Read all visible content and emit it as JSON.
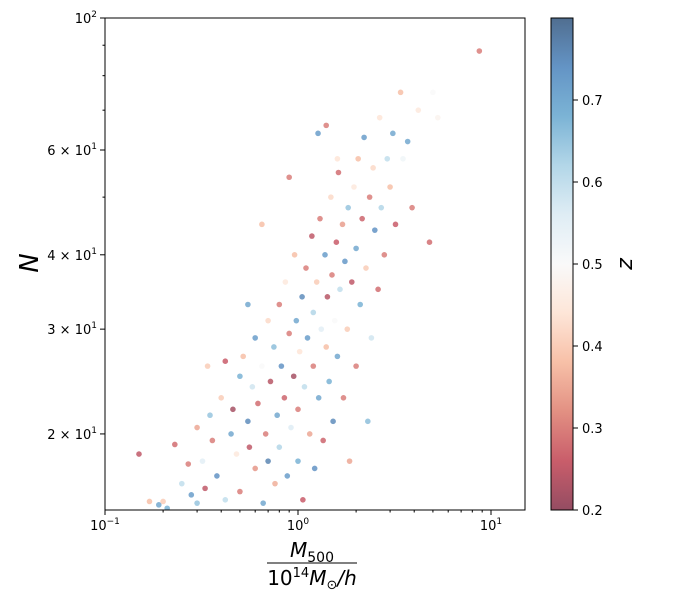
{
  "chart_data": {
    "type": "scatter",
    "title": "",
    "xlabel_numerator": "M",
    "xlabel_numerator_sub": "500",
    "xlabel_denominator": "10",
    "xlabel_denominator_sup": "14",
    "xlabel_denominator_rest": "M",
    "xlabel_denominator_sub": "⊙",
    "xlabel_denominator_tail": "/h",
    "ylabel": "N",
    "xscale": "log",
    "yscale": "log",
    "xlim": [
      0.1,
      15
    ],
    "ylim": [
      14.9,
      100
    ],
    "grid": false,
    "xticks": [
      {
        "value": 0.1,
        "base": "10",
        "exp": "−1"
      },
      {
        "value": 1,
        "base": "10",
        "exp": "0"
      },
      {
        "value": 10,
        "base": "10",
        "exp": "1"
      }
    ],
    "yticks": [
      {
        "value": 100,
        "label": "10",
        "exp": "2"
      },
      {
        "value": 60,
        "label": "6 × 10",
        "exp": "1"
      },
      {
        "value": 40,
        "label": "4 × 10",
        "exp": "1"
      },
      {
        "value": 30,
        "label": "3 × 10",
        "exp": "1"
      },
      {
        "value": 20,
        "label": "2 × 10",
        "exp": "1"
      }
    ],
    "yminor": [
      50,
      70,
      80,
      90
    ],
    "colorbar": {
      "label": "z",
      "colormap": "RdBu",
      "vmin": 0.2,
      "vmax": 0.8,
      "ticks": [
        "0.2",
        "0.3",
        "0.4",
        "0.5",
        "0.6",
        "0.7"
      ]
    },
    "marker_alpha": 0.6,
    "points_xyz": [
      [
        0.15,
        18.5,
        0.25
      ],
      [
        0.17,
        15.4,
        0.38
      ],
      [
        0.19,
        15.2,
        0.7
      ],
      [
        0.2,
        15.4,
        0.4
      ],
      [
        0.21,
        15,
        0.68
      ],
      [
        0.23,
        19.2,
        0.28
      ],
      [
        0.25,
        16.5,
        0.6
      ],
      [
        0.27,
        17.8,
        0.3
      ],
      [
        0.28,
        15.8,
        0.72
      ],
      [
        0.3,
        20.5,
        0.35
      ],
      [
        0.32,
        18,
        0.55
      ],
      [
        0.33,
        16.2,
        0.25
      ],
      [
        0.35,
        21.5,
        0.65
      ],
      [
        0.36,
        19.5,
        0.3
      ],
      [
        0.38,
        17,
        0.74
      ],
      [
        0.4,
        23,
        0.4
      ],
      [
        0.42,
        26.5,
        0.26
      ],
      [
        0.42,
        15.5,
        0.6
      ],
      [
        0.45,
        20,
        0.7
      ],
      [
        0.46,
        22,
        0.22
      ],
      [
        0.48,
        18.5,
        0.45
      ],
      [
        0.5,
        25,
        0.68
      ],
      [
        0.5,
        16,
        0.3
      ],
      [
        0.52,
        27,
        0.38
      ],
      [
        0.55,
        21,
        0.75
      ],
      [
        0.56,
        19,
        0.25
      ],
      [
        0.58,
        24,
        0.58
      ],
      [
        0.6,
        17.5,
        0.33
      ],
      [
        0.6,
        29,
        0.72
      ],
      [
        0.62,
        22.5,
        0.28
      ],
      [
        0.65,
        26,
        0.5
      ],
      [
        0.66,
        15.3,
        0.7
      ],
      [
        0.68,
        20,
        0.3
      ],
      [
        0.7,
        31,
        0.42
      ],
      [
        0.7,
        18,
        0.76
      ],
      [
        0.72,
        24.5,
        0.24
      ],
      [
        0.75,
        28,
        0.66
      ],
      [
        0.76,
        16.5,
        0.36
      ],
      [
        0.78,
        21.5,
        0.7
      ],
      [
        0.8,
        33,
        0.3
      ],
      [
        0.8,
        19,
        0.62
      ],
      [
        0.82,
        26,
        0.74
      ],
      [
        0.85,
        23,
        0.27
      ],
      [
        0.86,
        36,
        0.45
      ],
      [
        0.88,
        17,
        0.72
      ],
      [
        0.9,
        29.5,
        0.3
      ],
      [
        0.92,
        20.5,
        0.56
      ],
      [
        0.95,
        25,
        0.22
      ],
      [
        0.96,
        40,
        0.38
      ],
      [
        0.98,
        31,
        0.7
      ],
      [
        1.0,
        22,
        0.3
      ],
      [
        1.0,
        18,
        0.68
      ],
      [
        1.02,
        27.5,
        0.44
      ],
      [
        1.05,
        34,
        0.75
      ],
      [
        1.06,
        15.5,
        0.26
      ],
      [
        1.08,
        24,
        0.6
      ],
      [
        1.1,
        38,
        0.3
      ],
      [
        1.12,
        29,
        0.72
      ],
      [
        1.15,
        20,
        0.35
      ],
      [
        1.18,
        43,
        0.25
      ],
      [
        1.2,
        32,
        0.62
      ],
      [
        1.2,
        26,
        0.3
      ],
      [
        1.22,
        17.5,
        0.74
      ],
      [
        1.25,
        36,
        0.4
      ],
      [
        1.28,
        23,
        0.7
      ],
      [
        1.3,
        46,
        0.3
      ],
      [
        1.32,
        30,
        0.55
      ],
      [
        1.35,
        19.5,
        0.27
      ],
      [
        1.38,
        40,
        0.72
      ],
      [
        1.4,
        28,
        0.38
      ],
      [
        1.42,
        34,
        0.24
      ],
      [
        1.45,
        24.5,
        0.68
      ],
      [
        1.48,
        50,
        0.42
      ],
      [
        1.5,
        37,
        0.3
      ],
      [
        1.52,
        21,
        0.75
      ],
      [
        1.55,
        31,
        0.5
      ],
      [
        1.58,
        42,
        0.26
      ],
      [
        1.6,
        27,
        0.7
      ],
      [
        1.62,
        55,
        0.28
      ],
      [
        1.65,
        35,
        0.6
      ],
      [
        1.7,
        45,
        0.34
      ],
      [
        1.72,
        23,
        0.3
      ],
      [
        1.75,
        39,
        0.73
      ],
      [
        1.8,
        30,
        0.4
      ],
      [
        1.82,
        48,
        0.65
      ],
      [
        1.85,
        18,
        0.35
      ],
      [
        1.9,
        36,
        0.25
      ],
      [
        1.95,
        52,
        0.45
      ],
      [
        2.0,
        41,
        0.7
      ],
      [
        2.0,
        26,
        0.3
      ],
      [
        2.05,
        58,
        0.38
      ],
      [
        2.1,
        33,
        0.68
      ],
      [
        2.15,
        46,
        0.27
      ],
      [
        2.2,
        63,
        0.72
      ],
      [
        2.25,
        38,
        0.4
      ],
      [
        2.3,
        21,
        0.66
      ],
      [
        2.35,
        50,
        0.3
      ],
      [
        2.4,
        29,
        0.58
      ],
      [
        2.45,
        56,
        0.42
      ],
      [
        2.5,
        44,
        0.74
      ],
      [
        2.6,
        35,
        0.28
      ],
      [
        2.65,
        68,
        0.44
      ],
      [
        2.7,
        48,
        0.62
      ],
      [
        2.8,
        40,
        0.3
      ],
      [
        2.9,
        58,
        0.6
      ],
      [
        3.0,
        52,
        0.38
      ],
      [
        3.1,
        64,
        0.7
      ],
      [
        3.2,
        45,
        0.26
      ],
      [
        3.4,
        75,
        0.38
      ],
      [
        3.5,
        58,
        0.52
      ],
      [
        3.7,
        62,
        0.7
      ],
      [
        3.9,
        48,
        0.3
      ],
      [
        4.2,
        70,
        0.45
      ],
      [
        4.8,
        42,
        0.28
      ],
      [
        5.0,
        75,
        0.5
      ],
      [
        5.3,
        68,
        0.48
      ],
      [
        8.7,
        88,
        0.3
      ],
      [
        1.4,
        66,
        0.3
      ],
      [
        1.27,
        64,
        0.72
      ],
      [
        0.9,
        54,
        0.3
      ],
      [
        1.6,
        58,
        0.44
      ],
      [
        0.65,
        45,
        0.38
      ],
      [
        0.55,
        33,
        0.7
      ],
      [
        0.34,
        26,
        0.4
      ],
      [
        0.3,
        15.3,
        0.65
      ]
    ]
  }
}
